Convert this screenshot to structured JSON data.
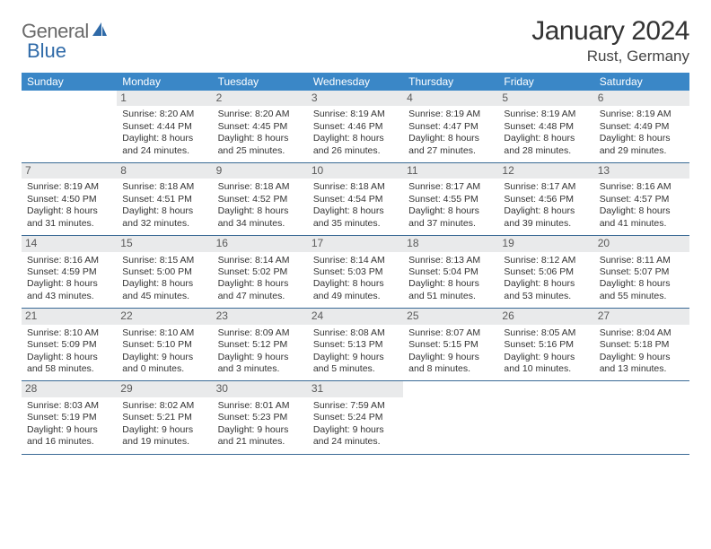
{
  "brand": {
    "text1": "General",
    "text2": "Blue",
    "color_gray": "#6a6a6a",
    "color_blue": "#2f6aa8"
  },
  "title": "January 2024",
  "location": "Rust, Germany",
  "header_bg": "#3a87c7",
  "border_color": "#3a6a95",
  "daynum_bg": "#e9eaeb",
  "days_of_week": [
    "Sunday",
    "Monday",
    "Tuesday",
    "Wednesday",
    "Thursday",
    "Friday",
    "Saturday"
  ],
  "weeks": [
    [
      {
        "n": "",
        "sr": "",
        "ss": "",
        "dl": ""
      },
      {
        "n": "1",
        "sr": "Sunrise: 8:20 AM",
        "ss": "Sunset: 4:44 PM",
        "dl": "Daylight: 8 hours and 24 minutes."
      },
      {
        "n": "2",
        "sr": "Sunrise: 8:20 AM",
        "ss": "Sunset: 4:45 PM",
        "dl": "Daylight: 8 hours and 25 minutes."
      },
      {
        "n": "3",
        "sr": "Sunrise: 8:19 AM",
        "ss": "Sunset: 4:46 PM",
        "dl": "Daylight: 8 hours and 26 minutes."
      },
      {
        "n": "4",
        "sr": "Sunrise: 8:19 AM",
        "ss": "Sunset: 4:47 PM",
        "dl": "Daylight: 8 hours and 27 minutes."
      },
      {
        "n": "5",
        "sr": "Sunrise: 8:19 AM",
        "ss": "Sunset: 4:48 PM",
        "dl": "Daylight: 8 hours and 28 minutes."
      },
      {
        "n": "6",
        "sr": "Sunrise: 8:19 AM",
        "ss": "Sunset: 4:49 PM",
        "dl": "Daylight: 8 hours and 29 minutes."
      }
    ],
    [
      {
        "n": "7",
        "sr": "Sunrise: 8:19 AM",
        "ss": "Sunset: 4:50 PM",
        "dl": "Daylight: 8 hours and 31 minutes."
      },
      {
        "n": "8",
        "sr": "Sunrise: 8:18 AM",
        "ss": "Sunset: 4:51 PM",
        "dl": "Daylight: 8 hours and 32 minutes."
      },
      {
        "n": "9",
        "sr": "Sunrise: 8:18 AM",
        "ss": "Sunset: 4:52 PM",
        "dl": "Daylight: 8 hours and 34 minutes."
      },
      {
        "n": "10",
        "sr": "Sunrise: 8:18 AM",
        "ss": "Sunset: 4:54 PM",
        "dl": "Daylight: 8 hours and 35 minutes."
      },
      {
        "n": "11",
        "sr": "Sunrise: 8:17 AM",
        "ss": "Sunset: 4:55 PM",
        "dl": "Daylight: 8 hours and 37 minutes."
      },
      {
        "n": "12",
        "sr": "Sunrise: 8:17 AM",
        "ss": "Sunset: 4:56 PM",
        "dl": "Daylight: 8 hours and 39 minutes."
      },
      {
        "n": "13",
        "sr": "Sunrise: 8:16 AM",
        "ss": "Sunset: 4:57 PM",
        "dl": "Daylight: 8 hours and 41 minutes."
      }
    ],
    [
      {
        "n": "14",
        "sr": "Sunrise: 8:16 AM",
        "ss": "Sunset: 4:59 PM",
        "dl": "Daylight: 8 hours and 43 minutes."
      },
      {
        "n": "15",
        "sr": "Sunrise: 8:15 AM",
        "ss": "Sunset: 5:00 PM",
        "dl": "Daylight: 8 hours and 45 minutes."
      },
      {
        "n": "16",
        "sr": "Sunrise: 8:14 AM",
        "ss": "Sunset: 5:02 PM",
        "dl": "Daylight: 8 hours and 47 minutes."
      },
      {
        "n": "17",
        "sr": "Sunrise: 8:14 AM",
        "ss": "Sunset: 5:03 PM",
        "dl": "Daylight: 8 hours and 49 minutes."
      },
      {
        "n": "18",
        "sr": "Sunrise: 8:13 AM",
        "ss": "Sunset: 5:04 PM",
        "dl": "Daylight: 8 hours and 51 minutes."
      },
      {
        "n": "19",
        "sr": "Sunrise: 8:12 AM",
        "ss": "Sunset: 5:06 PM",
        "dl": "Daylight: 8 hours and 53 minutes."
      },
      {
        "n": "20",
        "sr": "Sunrise: 8:11 AM",
        "ss": "Sunset: 5:07 PM",
        "dl": "Daylight: 8 hours and 55 minutes."
      }
    ],
    [
      {
        "n": "21",
        "sr": "Sunrise: 8:10 AM",
        "ss": "Sunset: 5:09 PM",
        "dl": "Daylight: 8 hours and 58 minutes."
      },
      {
        "n": "22",
        "sr": "Sunrise: 8:10 AM",
        "ss": "Sunset: 5:10 PM",
        "dl": "Daylight: 9 hours and 0 minutes."
      },
      {
        "n": "23",
        "sr": "Sunrise: 8:09 AM",
        "ss": "Sunset: 5:12 PM",
        "dl": "Daylight: 9 hours and 3 minutes."
      },
      {
        "n": "24",
        "sr": "Sunrise: 8:08 AM",
        "ss": "Sunset: 5:13 PM",
        "dl": "Daylight: 9 hours and 5 minutes."
      },
      {
        "n": "25",
        "sr": "Sunrise: 8:07 AM",
        "ss": "Sunset: 5:15 PM",
        "dl": "Daylight: 9 hours and 8 minutes."
      },
      {
        "n": "26",
        "sr": "Sunrise: 8:05 AM",
        "ss": "Sunset: 5:16 PM",
        "dl": "Daylight: 9 hours and 10 minutes."
      },
      {
        "n": "27",
        "sr": "Sunrise: 8:04 AM",
        "ss": "Sunset: 5:18 PM",
        "dl": "Daylight: 9 hours and 13 minutes."
      }
    ],
    [
      {
        "n": "28",
        "sr": "Sunrise: 8:03 AM",
        "ss": "Sunset: 5:19 PM",
        "dl": "Daylight: 9 hours and 16 minutes."
      },
      {
        "n": "29",
        "sr": "Sunrise: 8:02 AM",
        "ss": "Sunset: 5:21 PM",
        "dl": "Daylight: 9 hours and 19 minutes."
      },
      {
        "n": "30",
        "sr": "Sunrise: 8:01 AM",
        "ss": "Sunset: 5:23 PM",
        "dl": "Daylight: 9 hours and 21 minutes."
      },
      {
        "n": "31",
        "sr": "Sunrise: 7:59 AM",
        "ss": "Sunset: 5:24 PM",
        "dl": "Daylight: 9 hours and 24 minutes."
      },
      {
        "n": "",
        "sr": "",
        "ss": "",
        "dl": ""
      },
      {
        "n": "",
        "sr": "",
        "ss": "",
        "dl": ""
      },
      {
        "n": "",
        "sr": "",
        "ss": "",
        "dl": ""
      }
    ]
  ]
}
